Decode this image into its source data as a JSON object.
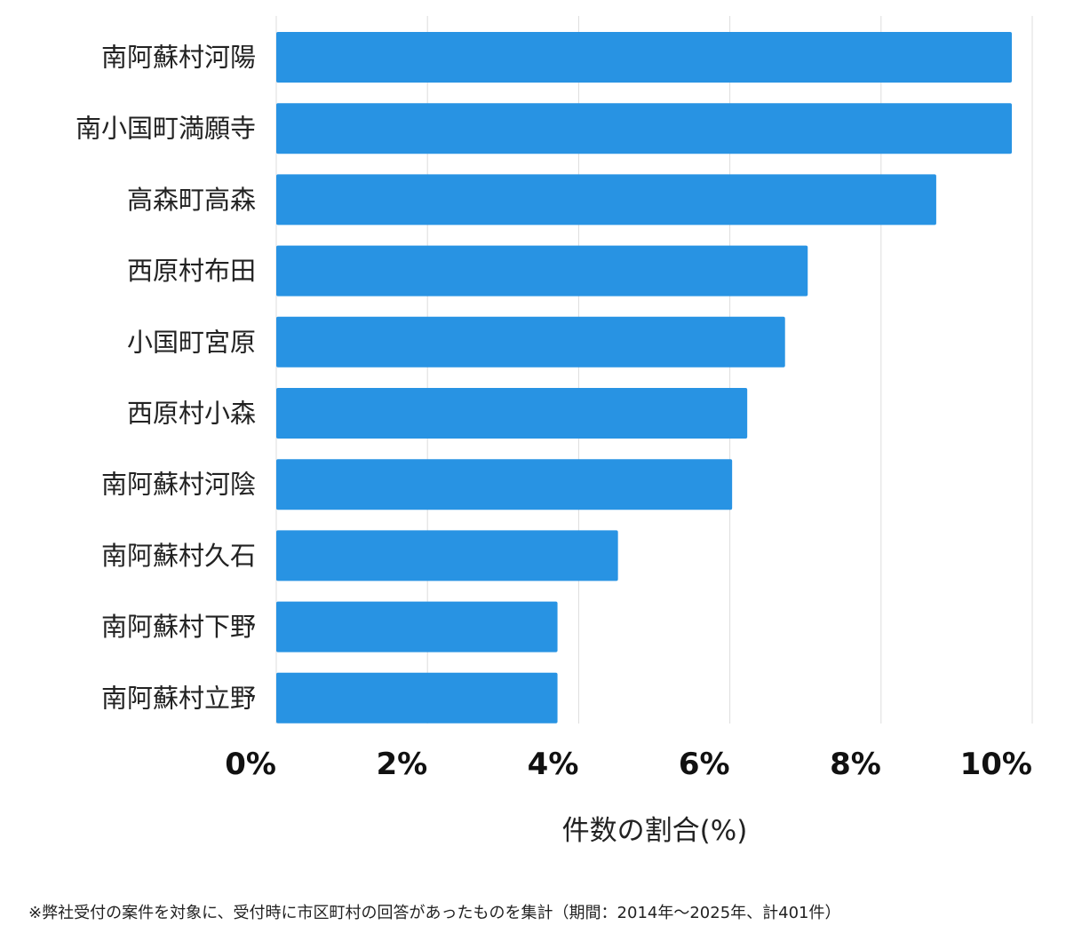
{
  "chart_data": {
    "type": "bar",
    "orientation": "horizontal",
    "categories": [
      "南阿蘇村河陽",
      "南小国町満願寺",
      "高森町高森",
      "西原村布田",
      "小国町宮原",
      "西原村小森",
      "南阿蘇村河陰",
      "南阿蘇村久石",
      "南阿蘇村下野",
      "南阿蘇村立野"
    ],
    "values": [
      9.73,
      9.73,
      8.73,
      7.03,
      6.73,
      6.23,
      6.03,
      4.52,
      3.72,
      3.72
    ],
    "xlabel": "件数の割合(%)",
    "ylabel": "",
    "xlim": [
      0,
      10
    ],
    "ticks": [
      0,
      2,
      4,
      6,
      8,
      10
    ],
    "tick_labels": [
      "0%",
      "2%",
      "4%",
      "6%",
      "8%",
      "10%"
    ],
    "grid": "vertical",
    "bar_color": "#2893e3"
  },
  "footnote": "※弊社受付の案件を対象に、受付時に市区町村の回答があったものを集計（期間：2014年～2025年、計401件）"
}
